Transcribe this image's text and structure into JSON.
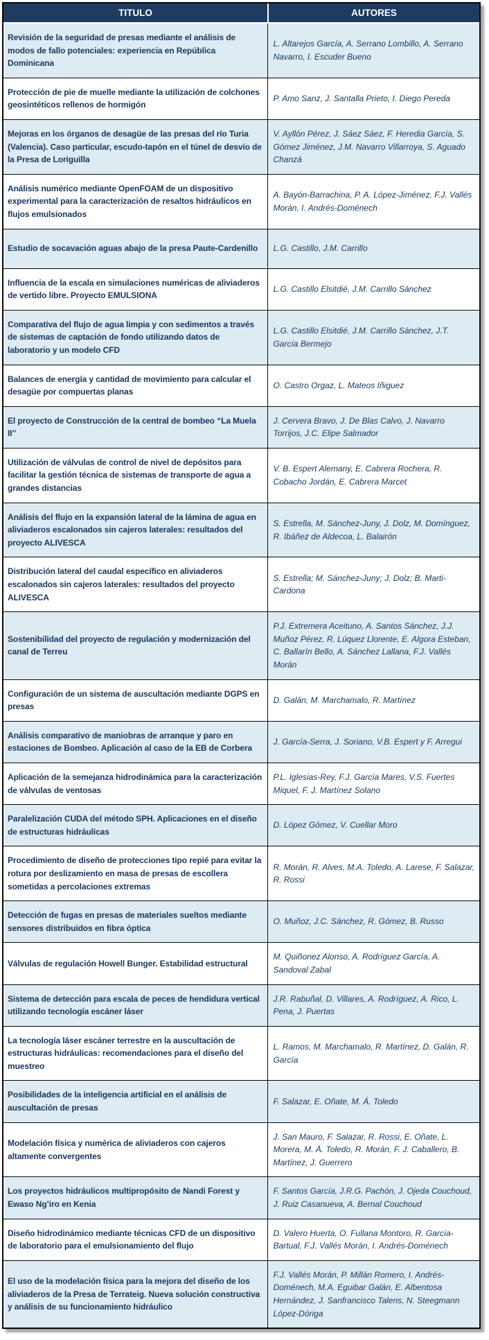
{
  "colors": {
    "header_bg": "#1f3b60",
    "header_text": "#ffffff",
    "row_alt_bg": "#deebf3",
    "row_bg": "#ffffff",
    "title_text": "#17375d",
    "author_text": "#17375d",
    "grid_border": "#0a0a0a"
  },
  "table": {
    "headers": {
      "titulo": "TITULO",
      "autores": "AUTORES"
    },
    "rows": [
      {
        "titulo": "Revisión de la seguridad de presas mediante el análisis de modos de fallo potenciales: experiencia en República Dominicana",
        "autores": "L. Altarejos García, A. Serrano Lombillo, A. Serrano Navarro, I. Escuder Bueno"
      },
      {
        "titulo": "Protección de pie de muelle mediante la utilización de colchones geosintéticos rellenos de hormigón",
        "autores": "P. Amo Sanz, J. Santalla Prieto, I. Diego Pereda"
      },
      {
        "titulo": "Mejoras en los órganos de desagüe de las presas del río Turia (Valencia). Caso particular, escudo-tapón en el túnel de desvío de la Presa de Loriguilla",
        "autores": "V. Ayllón Pérez, J. Sáez Sáez, F. Heredia García, S. Gómez Jiménez, J.M. Navarro Villarroya, S. Aguado Chanzá"
      },
      {
        "titulo": "Análisis numérico mediante OpenFOAM de un dispositivo experimental para la caracterización de resaltos hidráulicos en flujos emulsionados",
        "autores": "A. Bayón-Barrachina, P. A. López-Jiménez, F.J. Vallés Morán, I. Andrés-Doménech"
      },
      {
        "titulo": "Estudio de socavación aguas abajo de la presa Paute-Cardenillo",
        "autores": "L.G. Castillo, J.M. Carrillo"
      },
      {
        "titulo": "Influencia de la escala en simulaciones numéricas de aliviaderos de vertido libre. Proyecto EMULSIONA",
        "autores": "L.G. Castillo Elsitdié, J.M. Carrillo Sánchez"
      },
      {
        "titulo": "Comparativa del flujo de agua limpia y con sedimentos a través de sistemas de captación de fondo utilizando datos de laboratorio y un modelo CFD",
        "autores": "L.G. Castillo Elsitdié, J.M. Carrillo Sánchez, J.T. García Bermejo"
      },
      {
        "titulo": "Balances de energía y cantidad de movimiento para calcular el desagüe por compuertas planas",
        "autores": "O. Castro Orgaz, L. Mateos Iñiguez"
      },
      {
        "titulo": "El proyecto de Construcción de la central de bombeo “La Muela II”",
        "autores": "J. Cervera Bravo, J. De Blas Calvo, J. Navarro Torrijos, J.C. Elipe Salmador"
      },
      {
        "titulo": "Utilización de válvulas de control de nivel de depósitos para facilitar la gestión técnica de sistemas de transporte de agua a grandes distancias",
        "autores": "V. B. Espert Alemany, E. Cabrera Rochera, R. Cobacho Jordán, E. Cabrera Marcet"
      },
      {
        "titulo": "Análisis del flujo en la expansión lateral de la lámina de agua en aliviaderos escalonados sin cajeros laterales: resultados del proyecto ALIVESCA",
        "autores": "S. Estrella, M. Sánchez-Juny, J. Dolz, M. Domínguez, R. Ibáñez de Aldecoa, L. Balairón"
      },
      {
        "titulo": "Distribución lateral del caudal específico en aliviaderos escalonados sin cajeros laterales: resultados del proyecto ALIVESCA",
        "autores": "S. Estrella; M. Sánchez-Juny; J. Dolz; B. Marti-Cardona"
      },
      {
        "titulo": "Sostenibilidad del proyecto de regulación y modernización del canal de Terreu",
        "autores": "P.J. Extremera Aceituno, A. Santos Sánchez, J.J. Muñoz Pérez, R. Lúquez Llorente, E. Algora Esteban, C. Ballarín Bello, A. Sánchez Lallana, F.J. Vallés Morán"
      },
      {
        "titulo": "Configuración de un sistema de auscultación mediante DGPS en presas",
        "autores": "D. Galán, M. Marchamalo, R. Martínez"
      },
      {
        "titulo": "Análisis comparativo de maniobras de arranque y paro en estaciones de Bombeo. Aplicación al caso de la EB de Corbera",
        "autores": "J. García-Serra, J. Soriano, V.B. Espert y F. Arregui"
      },
      {
        "titulo": "Aplicación de la semejanza hidrodinámica para la caracterización de válvulas de ventosas",
        "autores": "P.L. Iglesias-Rey, F.J. García Mares, V.S. Fuertes Miquel, F. J. Martínez Solano"
      },
      {
        "titulo": "Paralelización CUDA del método SPH. Aplicaciones en el diseño de estructuras hidráulicas",
        "autores": "D. López Gómez, V. Cuellar Moro"
      },
      {
        "titulo": "Procedimiento de diseño de protecciones tipo repié para evitar la rotura por deslizamiento en masa de presas de escollera sometidas a percolaciones extremas",
        "autores": "R. Morán, R. Alves, M.A. Toledo, A. Larese, F. Salazar, R. Rossi"
      },
      {
        "titulo": "Detección de fugas en presas de materiales sueltos mediante sensores distribuidos en fibra óptica",
        "autores": "O. Muñoz, J.C. Sánchez, R. Gómez, B. Russo"
      },
      {
        "titulo": "Válvulas de regulación Howell Bunger. Estabilidad estructural",
        "autores": "M. Quiñonez Alonso, A. Rodríguez García, A. Sandoval Zabal"
      },
      {
        "titulo": "Sistema de detección para escala de peces de hendidura vertical utilizando tecnología escáner láser",
        "autores": "J.R. Rabuñal, D. Villares, A. Rodríguez, A. Rico, L. Pena, J. Puertas"
      },
      {
        "titulo": "La tecnología láser escáner terrestre en la auscultación de estructuras hidráulicas: recomendaciones para el diseño del muestreo",
        "autores": "L. Ramos, M. Marchamalo, R. Martínez, D. Galán, R. García"
      },
      {
        "titulo": "Posibilidades de la inteligencia artificial en el análisis de auscultación de presas",
        "autores": "F. Salazar, E. Oñate, M. Á. Toledo"
      },
      {
        "titulo": "Modelación física y numérica de aliviaderos con cajeros altamente convergentes",
        "autores": "J. San Mauro, F. Salazar, R. Rossi, E. Oñate, L. Morera, M. Á. Toledo, R. Morán, F. J. Caballero, B. Martínez, J. Guerrero"
      },
      {
        "titulo": "Los proyectos hidráulicos multipropósito de Nandi Forest y Ewaso Ng’iro en Kenia",
        "autores": "F. Santos García, J.R.G. Pachón, J. Ojeda Couchoud, J. Ruiz Casanueva, A. Bernal Couchoud"
      },
      {
        "titulo": "Diseño hidrodinámico mediante técnicas CFD de un dispositivo de laboratorio para el emulsionamiento del flujo",
        "autores": "D. Valero Huerta, O. Fullana Montoro, R. García-Bartual, F.J. Vallés Morán, I. Andrés-Doménech"
      },
      {
        "titulo": "El uso de la modelación física para la mejora del diseño de los aliviaderos de la Presa de Terrateig. Nueva solución constructiva y análisis de su funcionamiento hidráulico",
        "autores": "F.J. Vallés Morán, P. Millán Romero, I. Andrés-Doménech, M.A. Eguibar Galán, E. Albentosa Hernández, J. Sanfrancisco Talens, N. Steegmann López-Dóriga"
      }
    ]
  }
}
